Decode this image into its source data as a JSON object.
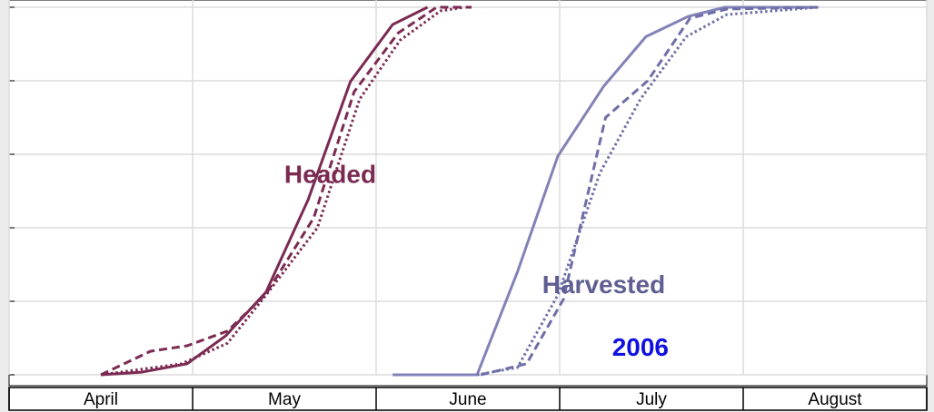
{
  "chart_data": {
    "type": "line",
    "categories": [
      "April",
      "May",
      "June",
      "July",
      "August"
    ],
    "xlim": [
      0,
      5
    ],
    "xticks": [
      0,
      1,
      2,
      3,
      4,
      5
    ],
    "ylim": [
      0,
      100
    ],
    "yticks": [
      0,
      20,
      40,
      60,
      80,
      100
    ],
    "grid": true,
    "series": [
      {
        "color": "#7b2a52",
        "dash": "solid",
        "x": [
          0.5,
          0.72,
          0.97,
          1.18,
          1.4,
          1.63,
          1.86,
          2.09,
          2.28
        ],
        "values": [
          0,
          0.7,
          3,
          10.6,
          22.5,
          47.7,
          79.8,
          95.3,
          100
        ]
      },
      {
        "color": "#7b2a52",
        "dash": "dashed",
        "x": [
          0.5,
          0.77,
          0.97,
          1.19,
          1.4,
          1.66,
          1.88,
          2.12,
          2.33,
          2.52
        ],
        "values": [
          0,
          6.4,
          7.9,
          11.9,
          22,
          42.7,
          77,
          93,
          100,
          100
        ]
      },
      {
        "color": "#7b2a52",
        "dash": "dotted",
        "x": [
          0.5,
          0.94,
          1.19,
          1.4,
          1.68,
          1.91,
          2.13,
          2.35,
          2.48
        ],
        "values": [
          0,
          3,
          8.6,
          21.7,
          40,
          75,
          91,
          99,
          100
        ]
      },
      {
        "color": "#8282b8",
        "dash": "solid",
        "x": [
          2.09,
          2.55,
          2.77,
          2.99,
          3.24,
          3.47,
          3.7,
          3.9,
          4.41
        ],
        "values": [
          0,
          0,
          28,
          59.5,
          78.5,
          92,
          97.5,
          100,
          100
        ]
      },
      {
        "color": "#6e6ea8",
        "dash": "dashed",
        "x": [
          2.57,
          2.82,
          3.02,
          3.25,
          3.48,
          3.71,
          3.91,
          4.41
        ],
        "values": [
          0,
          3,
          20.5,
          70,
          80,
          97,
          99.5,
          100
        ]
      },
      {
        "color": "#6e6ea8",
        "dash": "dotted",
        "x": [
          2.55,
          2.77,
          2.99,
          3.22,
          3.44,
          3.69,
          3.91,
          4.41
        ],
        "values": [
          0,
          2,
          21.7,
          55,
          75,
          92,
          98,
          100
        ]
      }
    ],
    "annotations": [
      {
        "text": "Headed",
        "x": 1.75,
        "y": 54,
        "color": "#7b2a52"
      },
      {
        "text": "Harvested",
        "x": 3.24,
        "y": 24,
        "color": "#5e5e92"
      },
      {
        "text": "2006",
        "x": 3.44,
        "y": 7,
        "color": "#1010e0"
      }
    ]
  }
}
